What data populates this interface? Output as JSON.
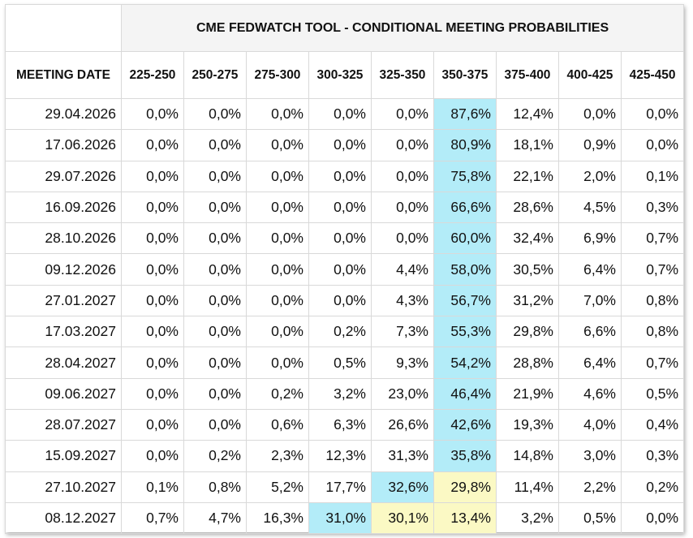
{
  "chart_data": {
    "type": "table",
    "title": "CME FEDWATCH TOOL - CONDITIONAL MEETING PROBABILITIES",
    "row_header_label": "MEETING DATE",
    "columns": [
      "225-250",
      "250-275",
      "275-300",
      "300-325",
      "325-350",
      "350-375",
      "375-400",
      "400-425",
      "425-450"
    ],
    "rows": [
      {
        "date": "29.04.2026",
        "values": [
          "0,0%",
          "0,0%",
          "0,0%",
          "0,0%",
          "0,0%",
          "87,6%",
          "12,4%",
          "0,0%",
          "0,0%"
        ],
        "highlight": {
          "5": "blue"
        }
      },
      {
        "date": "17.06.2026",
        "values": [
          "0,0%",
          "0,0%",
          "0,0%",
          "0,0%",
          "0,0%",
          "80,9%",
          "18,1%",
          "0,9%",
          "0,0%"
        ],
        "highlight": {
          "5": "blue"
        }
      },
      {
        "date": "29.07.2026",
        "values": [
          "0,0%",
          "0,0%",
          "0,0%",
          "0,0%",
          "0,0%",
          "75,8%",
          "22,1%",
          "2,0%",
          "0,1%"
        ],
        "highlight": {
          "5": "blue"
        }
      },
      {
        "date": "16.09.2026",
        "values": [
          "0,0%",
          "0,0%",
          "0,0%",
          "0,0%",
          "0,0%",
          "66,6%",
          "28,6%",
          "4,5%",
          "0,3%"
        ],
        "highlight": {
          "5": "blue"
        }
      },
      {
        "date": "28.10.2026",
        "values": [
          "0,0%",
          "0,0%",
          "0,0%",
          "0,0%",
          "0,0%",
          "60,0%",
          "32,4%",
          "6,9%",
          "0,7%"
        ],
        "highlight": {
          "5": "blue"
        }
      },
      {
        "date": "09.12.2026",
        "values": [
          "0,0%",
          "0,0%",
          "0,0%",
          "0,0%",
          "4,4%",
          "58,0%",
          "30,5%",
          "6,4%",
          "0,7%"
        ],
        "highlight": {
          "5": "blue"
        }
      },
      {
        "date": "27.01.2027",
        "values": [
          "0,0%",
          "0,0%",
          "0,0%",
          "0,0%",
          "4,3%",
          "56,7%",
          "31,2%",
          "7,0%",
          "0,8%"
        ],
        "highlight": {
          "5": "blue"
        }
      },
      {
        "date": "17.03.2027",
        "values": [
          "0,0%",
          "0,0%",
          "0,0%",
          "0,2%",
          "7,3%",
          "55,3%",
          "29,8%",
          "6,6%",
          "0,8%"
        ],
        "highlight": {
          "5": "blue"
        }
      },
      {
        "date": "28.04.2027",
        "values": [
          "0,0%",
          "0,0%",
          "0,0%",
          "0,5%",
          "9,3%",
          "54,2%",
          "28,8%",
          "6,4%",
          "0,7%"
        ],
        "highlight": {
          "5": "blue"
        }
      },
      {
        "date": "09.06.2027",
        "values": [
          "0,0%",
          "0,0%",
          "0,2%",
          "3,2%",
          "23,0%",
          "46,4%",
          "21,9%",
          "4,6%",
          "0,5%"
        ],
        "highlight": {
          "5": "blue"
        }
      },
      {
        "date": "28.07.2027",
        "values": [
          "0,0%",
          "0,0%",
          "0,6%",
          "6,3%",
          "26,6%",
          "42,6%",
          "19,3%",
          "4,0%",
          "0,4%"
        ],
        "highlight": {
          "5": "blue"
        }
      },
      {
        "date": "15.09.2027",
        "values": [
          "0,0%",
          "0,2%",
          "2,3%",
          "12,3%",
          "31,3%",
          "35,8%",
          "14,8%",
          "3,0%",
          "0,3%"
        ],
        "highlight": {
          "5": "blue"
        }
      },
      {
        "date": "27.10.2027",
        "values": [
          "0,1%",
          "0,8%",
          "5,2%",
          "17,7%",
          "32,6%",
          "29,8%",
          "11,4%",
          "2,2%",
          "0,2%"
        ],
        "highlight": {
          "4": "blue",
          "5": "yellow"
        }
      },
      {
        "date": "08.12.2027",
        "values": [
          "0,7%",
          "4,7%",
          "16,3%",
          "31,0%",
          "30,1%",
          "13,4%",
          "3,2%",
          "0,5%",
          "0,0%"
        ],
        "highlight": {
          "3": "blue",
          "4": "yellow",
          "5": "yellow"
        }
      }
    ]
  },
  "colors": {
    "highlight_blue": "#b3ecf8",
    "highlight_yellow": "#fbf9c4",
    "title_background": "#f4f4f4",
    "grid_line": "#d9d9d9"
  }
}
